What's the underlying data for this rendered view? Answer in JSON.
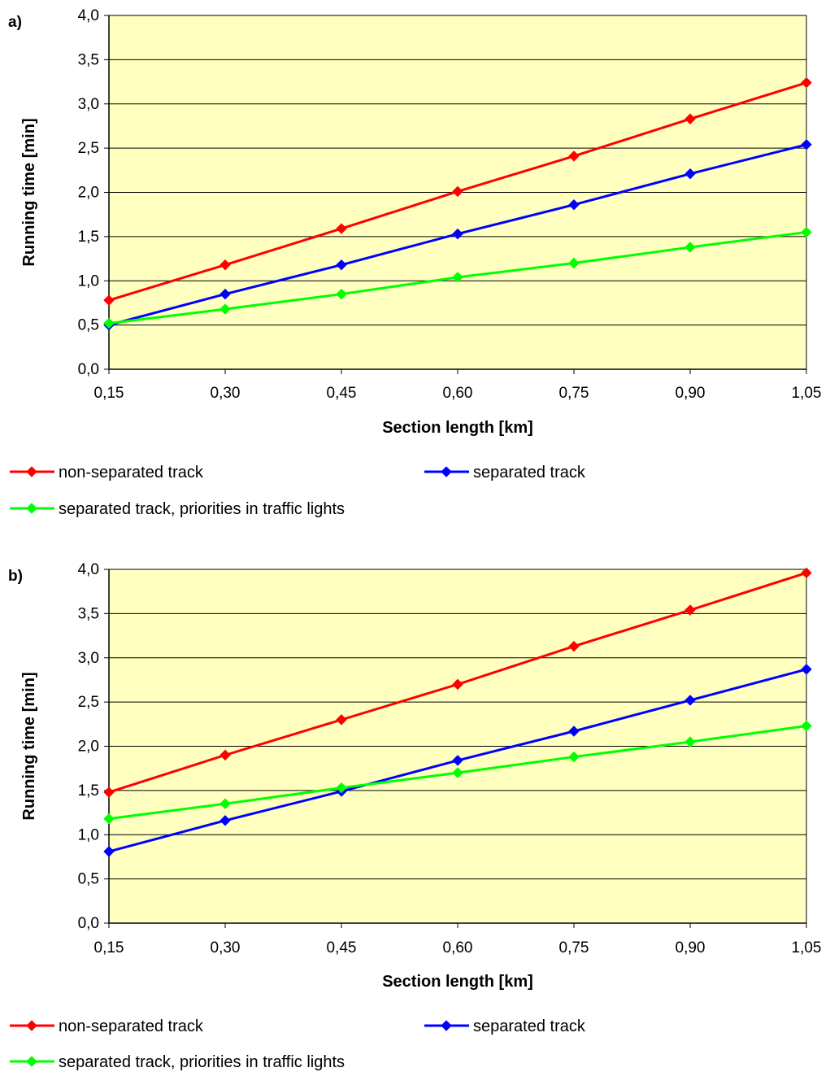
{
  "chart_data": [
    {
      "type": "line",
      "panel_label": "a)",
      "x": [
        "0,15",
        "0,30",
        "0,45",
        "0,60",
        "0,75",
        "0,90",
        "1,05"
      ],
      "xlabel": "Section length [km]",
      "ylabel": "Running time [min]",
      "yticks": [
        "0,0",
        "0,5",
        "1,0",
        "1,5",
        "2,0",
        "2,5",
        "3,0",
        "3,5",
        "4,0"
      ],
      "ylim": [
        0,
        4
      ],
      "grid": "horizontal",
      "legend_position": "bottom",
      "series": [
        {
          "name": "non-separated track",
          "color": "#ff0000",
          "values": [
            0.78,
            1.18,
            1.59,
            2.01,
            2.41,
            2.83,
            3.24
          ]
        },
        {
          "name": "separated track",
          "color": "#0000ff",
          "values": [
            0.5,
            0.85,
            1.18,
            1.53,
            1.86,
            2.21,
            2.54
          ]
        },
        {
          "name": "separated track, priorities in traffic lights",
          "color": "#00ff00",
          "values": [
            0.52,
            0.68,
            0.85,
            1.04,
            1.2,
            1.38,
            1.55
          ]
        }
      ]
    },
    {
      "type": "line",
      "panel_label": "b)",
      "x": [
        "0,15",
        "0,30",
        "0,45",
        "0,60",
        "0,75",
        "0,90",
        "1,05"
      ],
      "xlabel": "Section length [km]",
      "ylabel": "Running time [min]",
      "yticks": [
        "0,0",
        "0,5",
        "1,0",
        "1,5",
        "2,0",
        "2,5",
        "3,0",
        "3,5",
        "4,0"
      ],
      "ylim": [
        0,
        4
      ],
      "grid": "horizontal",
      "legend_position": "bottom",
      "series": [
        {
          "name": "non-separated track",
          "color": "#ff0000",
          "values": [
            1.48,
            1.9,
            2.3,
            2.7,
            3.13,
            3.54,
            3.96
          ]
        },
        {
          "name": "separated track",
          "color": "#0000ff",
          "values": [
            0.81,
            1.16,
            1.49,
            1.84,
            2.17,
            2.52,
            2.87
          ]
        },
        {
          "name": "separated track, priorities in traffic lights",
          "color": "#00ff00",
          "values": [
            1.18,
            1.35,
            1.53,
            1.7,
            1.88,
            2.05,
            2.23
          ]
        }
      ]
    }
  ],
  "style": {
    "plot_background": "#ffffc0",
    "grid_color": "#000000",
    "axis_color": "#000000"
  }
}
